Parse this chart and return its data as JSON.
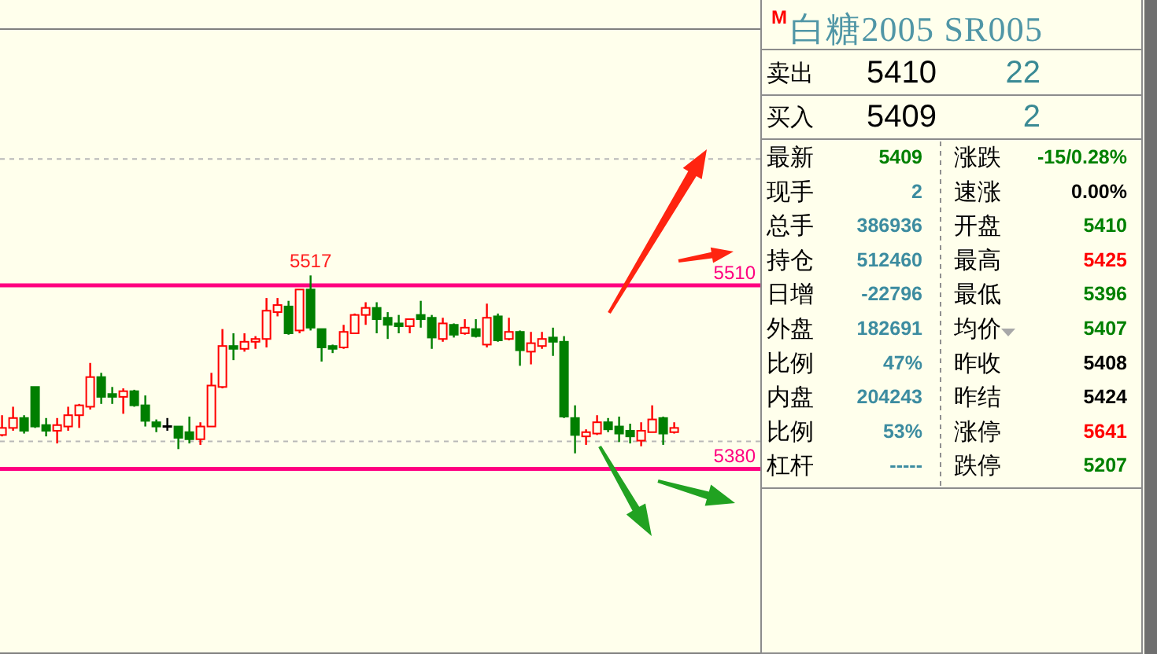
{
  "chart_data": [
    {
      "type": "candlestick",
      "categories": [
        null,
        null,
        null,
        null,
        null,
        null,
        null,
        null,
        null,
        null,
        null,
        null,
        null,
        null,
        null,
        null,
        null,
        null,
        null,
        null,
        null,
        null,
        null,
        null,
        null,
        null,
        null,
        null,
        null,
        null,
        null,
        null,
        null,
        null,
        null,
        null,
        null,
        null,
        null,
        null,
        null,
        null,
        null,
        null,
        null,
        null,
        null,
        null,
        null,
        null,
        null,
        null,
        null,
        null,
        null,
        null,
        null,
        null,
        null,
        null,
        null,
        null
      ],
      "ohlc": [
        [
          5404,
          5418,
          5403,
          5409
        ],
        [
          5409,
          5424,
          5407,
          5416
        ],
        [
          5416,
          5418,
          5405,
          5407
        ],
        [
          5438,
          5438,
          5409,
          5410
        ],
        [
          5411,
          5416,
          5403,
          5407
        ],
        [
          5407,
          5416,
          5398,
          5411
        ],
        [
          5410,
          5424,
          5407,
          5418
        ],
        [
          5418,
          5426,
          5409,
          5425
        ],
        [
          5424,
          5455,
          5422,
          5445
        ],
        [
          5445,
          5448,
          5426,
          5431
        ],
        [
          5433,
          5438,
          5426,
          5431
        ],
        [
          5431,
          5437,
          5419,
          5435
        ],
        [
          5435,
          5436,
          5424,
          5425
        ],
        [
          5425,
          5432,
          5410,
          5414
        ],
        [
          5413,
          5415,
          5406,
          5410
        ],
        [
          5410,
          5416,
          5407,
          5410
        ],
        [
          5410,
          5410,
          5394,
          5402
        ],
        [
          5406,
          5417,
          5398,
          5401
        ],
        [
          5401,
          5413,
          5397,
          5410
        ],
        [
          5410,
          5448,
          5410,
          5439
        ],
        [
          5438,
          5479,
          5437,
          5467
        ],
        [
          5467,
          5476,
          5457,
          5465
        ],
        [
          5465,
          5476,
          5463,
          5470
        ],
        [
          5470,
          5474,
          5465,
          5472
        ],
        [
          5472,
          5501,
          5466,
          5492
        ],
        [
          5491,
          5501,
          5488,
          5496
        ],
        [
          5495,
          5499,
          5475,
          5476
        ],
        [
          5478,
          5507,
          5476,
          5507
        ],
        [
          5507,
          5517,
          5478,
          5480
        ],
        [
          5479,
          5479,
          5456,
          5466
        ],
        [
          5467,
          5468,
          5462,
          5465
        ],
        [
          5466,
          5482,
          5465,
          5477
        ],
        [
          5476,
          5490,
          5476,
          5489
        ],
        [
          5489,
          5498,
          5482,
          5494
        ],
        [
          5494,
          5498,
          5476,
          5486
        ],
        [
          5487,
          5491,
          5472,
          5482
        ],
        [
          5483,
          5489,
          5476,
          5481
        ],
        [
          5481,
          5486,
          5476,
          5486
        ],
        [
          5489,
          5499,
          5480,
          5486
        ],
        [
          5487,
          5489,
          5465,
          5473
        ],
        [
          5472,
          5487,
          5470,
          5483
        ],
        [
          5482,
          5483,
          5473,
          5475
        ],
        [
          5476,
          5486,
          5475,
          5480
        ],
        [
          5479,
          5486,
          5473,
          5474
        ],
        [
          5468,
          5497,
          5466,
          5487
        ],
        [
          5488,
          5490,
          5470,
          5471
        ],
        [
          5472,
          5487,
          5471,
          5477
        ],
        [
          5477,
          5478,
          5453,
          5464
        ],
        [
          5463,
          5477,
          5454,
          5469
        ],
        [
          5467,
          5477,
          5465,
          5472
        ],
        [
          5473,
          5480,
          5460,
          5470
        ],
        [
          5470,
          5474,
          5416,
          5417
        ],
        [
          5416,
          5425,
          5391,
          5404
        ],
        [
          5403,
          5408,
          5397,
          5406
        ],
        [
          5405,
          5418,
          5404,
          5413
        ],
        [
          5413,
          5416,
          5406,
          5408
        ],
        [
          5410,
          5417,
          5399,
          5405
        ],
        [
          5407,
          5412,
          5398,
          5403
        ],
        [
          5400,
          5413,
          5396,
          5407
        ],
        [
          5406,
          5425,
          5406,
          5415
        ],
        [
          5416,
          5417,
          5397,
          5405
        ],
        [
          5406,
          5413,
          5405,
          5409
        ]
      ],
      "colors": [
        "#ff0000",
        "#ff0000",
        "#007f00",
        "#007f00",
        "#007f00",
        "#ff0000",
        "#ff0000",
        "#ff0000",
        "#ff0000",
        "#007f00",
        "#007f00",
        "#ff0000",
        "#007f00",
        "#007f00",
        "#007f00",
        "#000000",
        "#007f00",
        "#007f00",
        "#ff0000",
        "#ff0000",
        "#ff0000",
        "#007f00",
        "#ff0000",
        "#ff0000",
        "#ff0000",
        "#ff0000",
        "#007f00",
        "#ff0000",
        "#007f00",
        "#007f00",
        "#007f00",
        "#ff0000",
        "#ff0000",
        "#ff0000",
        "#007f00",
        "#007f00",
        "#007f00",
        "#ff0000",
        "#007f00",
        "#007f00",
        "#ff0000",
        "#007f00",
        "#ff0000",
        "#007f00",
        "#ff0000",
        "#007f00",
        "#ff0000",
        "#007f00",
        "#ff0000",
        "#ff0000",
        "#007f00",
        "#007f00",
        "#007f00",
        "#ff0000",
        "#ff0000",
        "#007f00",
        "#007f00",
        "#007f00",
        "#ff0000",
        "#ff0000",
        "#007f00",
        "#ff0000"
      ],
      "ylim": [
        5250,
        5692
      ],
      "yticks": [
        {
          "value": 5400,
          "label": null
        },
        {
          "value": 5600,
          "label": null
        }
      ],
      "grid": "y",
      "ref_lines": [
        {
          "axis": "y",
          "value": 5510,
          "label": "5510",
          "color": "#ff0080"
        },
        {
          "axis": "y",
          "value": 5380,
          "label": "5380",
          "color": "#ff0080"
        }
      ],
      "annotations": [
        {
          "text": "5517",
          "y": 5517
        }
      ]
    },
    {
      "type": "other",
      "title": "白糖2005 SR005",
      "annotations": [
        "M",
        "卖出",
        "5410",
        "22",
        "买入",
        "5409",
        "2",
        "最新",
        "5409",
        "涨跌",
        "-15/0.28%",
        "现手",
        "2",
        "速涨",
        "0.00%",
        "总手",
        "386936",
        "开盘",
        "5410",
        "持仓",
        "512460",
        "最高",
        "5425",
        "日增",
        "-22796",
        "最低",
        "5396",
        "外盘",
        "182691",
        "均价",
        "5407",
        "比例",
        "47%",
        "昨收",
        "5408",
        "内盘",
        "204243",
        "昨结",
        "5424",
        "比例",
        "53%",
        "涨停",
        "5641",
        "杠杆",
        "-----",
        "跌停",
        "5207"
      ],
      "colors": [
        "#ff0000",
        "#000000",
        "#000000",
        "#3a8a94",
        "#000000",
        "#000000",
        "#3a8a94",
        "#000000",
        "#008000",
        "#000000",
        "#008000",
        "#000000",
        "#3c8ca0",
        "#000000",
        "#000000",
        "#000000",
        "#3c8ca0",
        "#000000",
        "#008000",
        "#000000",
        "#3c8ca0",
        "#000000",
        "#ff0000",
        "#000000",
        "#3c8ca0",
        "#000000",
        "#008000",
        "#000000",
        "#3c8ca0",
        "#000000",
        "#008000",
        "#000000",
        "#3c8ca0",
        "#000000",
        "#000000",
        "#000000",
        "#3c8ca0",
        "#000000",
        "#000000",
        "#000000",
        "#3c8ca0",
        "#000000",
        "#ff0000",
        "#000000",
        "#3c8ca0",
        "#000000",
        "#008000"
      ]
    }
  ]
}
